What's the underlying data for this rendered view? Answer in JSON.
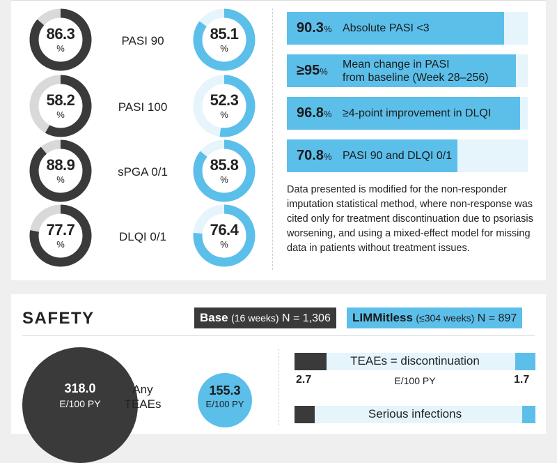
{
  "efficacy": {
    "rows": [
      {
        "label": "PASI 90",
        "base_value": 86.3,
        "base_text": "86.3",
        "lim_value": 85.1,
        "lim_text": "85.1"
      },
      {
        "label": "PASI 100",
        "base_value": 58.2,
        "base_text": "58.2",
        "lim_value": 52.3,
        "lim_text": "52.3"
      },
      {
        "label": "sPGA 0/1",
        "base_value": 88.9,
        "base_text": "88.9",
        "lim_value": 85.8,
        "lim_text": "85.8"
      },
      {
        "label": "DLQI 0/1",
        "base_value": 77.7,
        "base_text": "77.7",
        "lim_value": 76.4,
        "lim_text": "76.4"
      }
    ],
    "pct_symbol": "%",
    "bars": [
      {
        "value": 90.3,
        "num": "90.3",
        "suffix": "%",
        "prefix": "",
        "text_line1": "Absolute PASI <3",
        "text_line2": ""
      },
      {
        "value": 95,
        "num": "95",
        "suffix": "%",
        "prefix": "≥",
        "text_line1": "Mean change in PASI",
        "text_line2": "from baseline (Week 28–256)"
      },
      {
        "value": 96.8,
        "num": "96.8",
        "suffix": "%",
        "prefix": "",
        "text_line1": "≥4-point improvement in DLQI",
        "text_line2": ""
      },
      {
        "value": 70.8,
        "num": "70.8",
        "suffix": "%",
        "prefix": "",
        "text_line1": "PASI 90 and DLQI 0/1",
        "text_line2": ""
      }
    ],
    "note": "Data presented is modified for the non-responder imputation statistical method, where non-response was cited only for treatment discontinuation due to psoriasis worsening, and using a mixed-effect model for missing data in patients without treatment issues."
  },
  "safety": {
    "title": "SAFETY",
    "legend_base": {
      "name": "Base",
      "detail": "(16 weeks)",
      "n": "N = 1,306"
    },
    "legend_lim": {
      "name": "LIMMitless",
      "detail": "(≤304 weeks)",
      "n": "N = 897"
    },
    "any_teaes": {
      "label_line1": "Any",
      "label_line2": "TEAEs",
      "base_value": "318.0",
      "lim_value": "155.3",
      "unit": "E/100 PY"
    },
    "teae_disc": {
      "title": "TEAEs = discontinuation",
      "base_value": "2.7",
      "lim_value": "1.7",
      "unit": "E/100 PY"
    },
    "serious_inf": {
      "title": "Serious infections"
    }
  },
  "colors": {
    "dark": "#3a3a3a",
    "blue": "#5bbfea",
    "light_blue": "#e6f4fb",
    "grey_track": "#d9d9d9"
  }
}
